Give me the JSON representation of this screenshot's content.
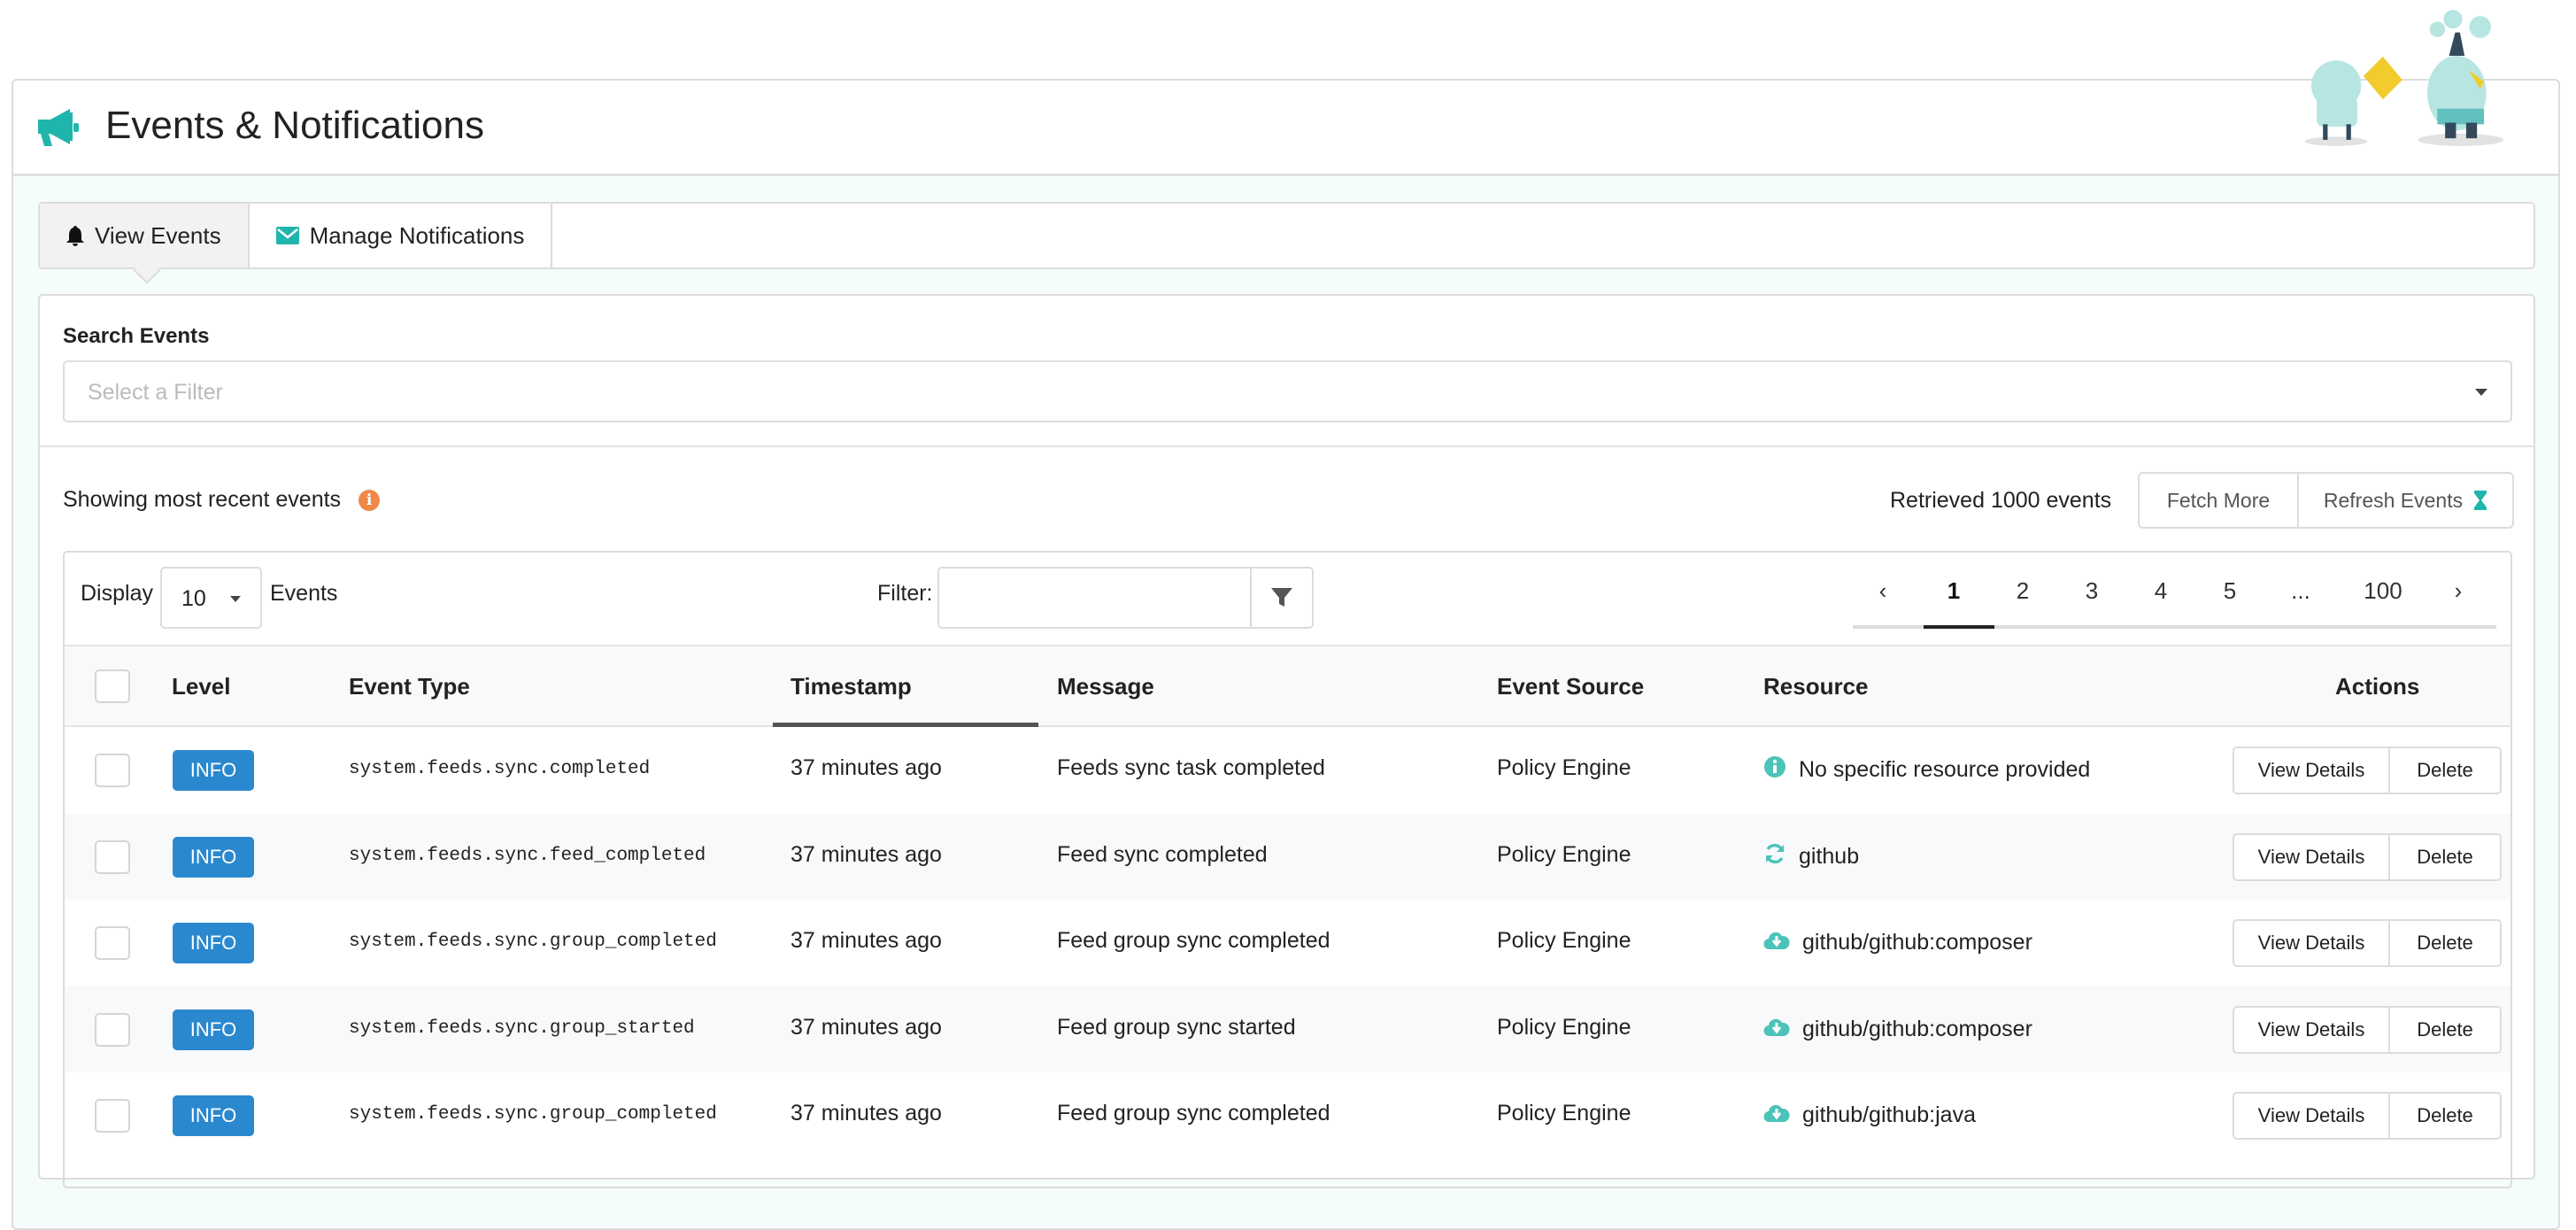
{
  "header": {
    "title": "Events & Notifications",
    "icon": "megaphone-icon",
    "accent": "#1fb5ac"
  },
  "tabs": [
    {
      "label": "View Events",
      "icon": "bell-icon",
      "active": true
    },
    {
      "label": "Manage Notifications",
      "icon": "envelope-icon",
      "active": false
    }
  ],
  "search": {
    "label": "Search Events",
    "placeholder": "Select a Filter"
  },
  "status": {
    "showing": "Showing most recent events",
    "retrieved": "Retrieved 1000 events",
    "info_color": "#f0884a"
  },
  "buttons": {
    "fetch_more": "Fetch More",
    "refresh": "Refresh Events"
  },
  "toolbar": {
    "display_label": "Display",
    "display_value": "10",
    "events_label": "Events",
    "filter_label": "Filter:",
    "filter_value": ""
  },
  "pagination": {
    "prev": "‹",
    "pages": [
      "1",
      "2",
      "3",
      "4",
      "5",
      "...",
      "100"
    ],
    "next": "›",
    "current": "1"
  },
  "table": {
    "columns": [
      "Level",
      "Event Type",
      "Timestamp",
      "Message",
      "Event Source",
      "Resource",
      "Actions"
    ],
    "sorted_column": "Timestamp",
    "rows": [
      {
        "level": "INFO",
        "event_type": "system.feeds.sync.completed",
        "timestamp": "37 minutes ago",
        "message": "Feeds sync task completed",
        "source": "Policy Engine",
        "resource": "No specific resource provided",
        "resource_icon": "info-circle-icon"
      },
      {
        "level": "INFO",
        "event_type": "system.feeds.sync.feed_completed",
        "timestamp": "37 minutes ago",
        "message": "Feed sync completed",
        "source": "Policy Engine",
        "resource": "github",
        "resource_icon": "refresh-icon"
      },
      {
        "level": "INFO",
        "event_type": "system.feeds.sync.group_completed",
        "timestamp": "37 minutes ago",
        "message": "Feed group sync completed",
        "source": "Policy Engine",
        "resource": "github/github:composer",
        "resource_icon": "cloud-download-icon"
      },
      {
        "level": "INFO",
        "event_type": "system.feeds.sync.group_started",
        "timestamp": "37 minutes ago",
        "message": "Feed group sync started",
        "source": "Policy Engine",
        "resource": "github/github:composer",
        "resource_icon": "cloud-download-icon"
      },
      {
        "level": "INFO",
        "event_type": "system.feeds.sync.group_completed",
        "timestamp": "37 minutes ago",
        "message": "Feed group sync completed",
        "source": "Policy Engine",
        "resource": "github/github:java",
        "resource_icon": "cloud-download-icon"
      }
    ],
    "row_actions": {
      "view": "View Details",
      "delete": "Delete"
    },
    "badge_color": "#2a88cf"
  }
}
